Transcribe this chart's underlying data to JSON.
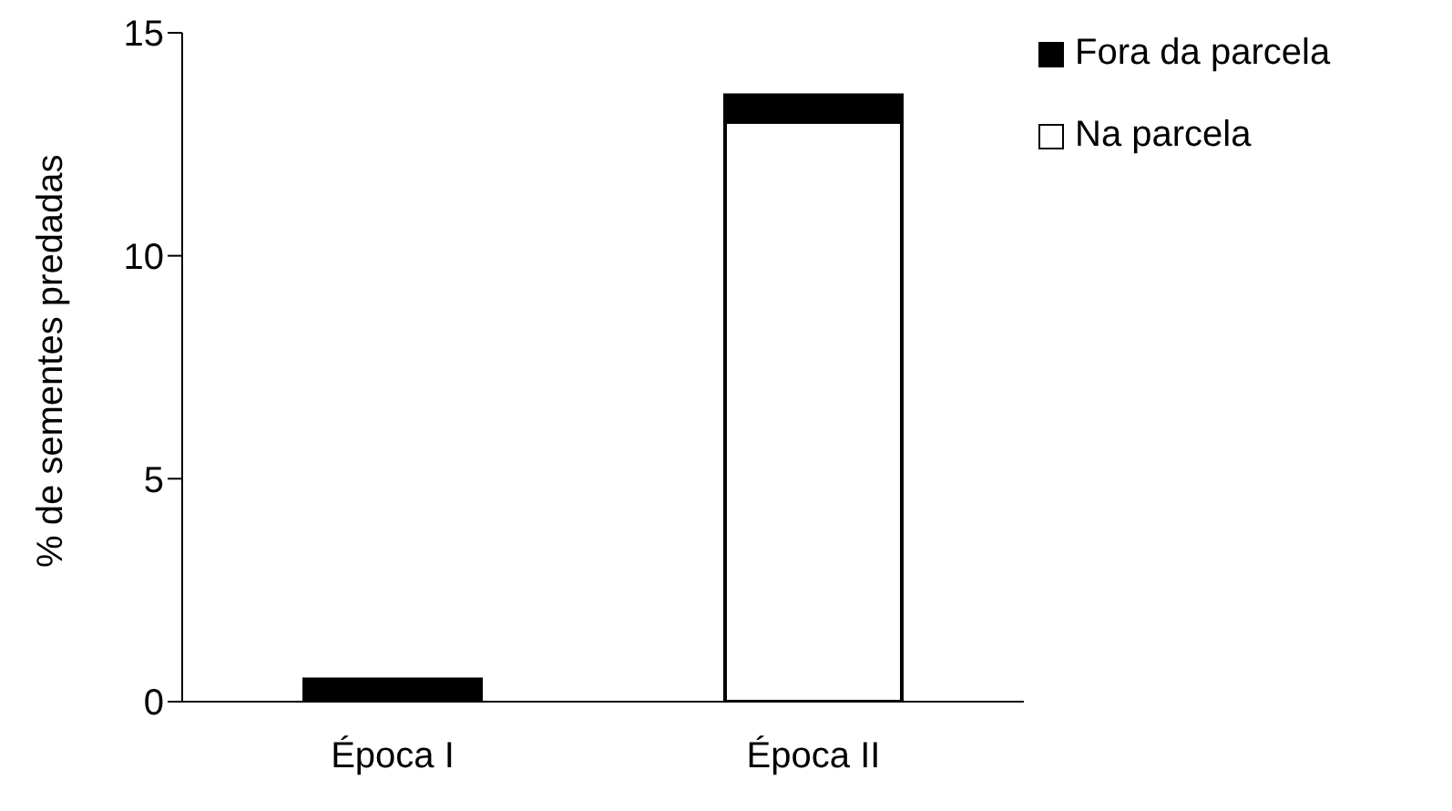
{
  "chart_data": {
    "type": "bar",
    "ylabel": "% de sementes predadas",
    "categories": [
      "Época I",
      "Época II"
    ],
    "stacked": true,
    "series": [
      {
        "name": "Na parcela",
        "color": "#ffffff",
        "values": [
          0,
          13.0
        ]
      },
      {
        "name": "Fora da parcela",
        "color": "#000000",
        "values": [
          0.5,
          0.6
        ]
      }
    ],
    "ylim": [
      0,
      15
    ],
    "yticks": [
      0,
      5,
      10,
      15
    ],
    "grid": false,
    "legend": "top right"
  }
}
